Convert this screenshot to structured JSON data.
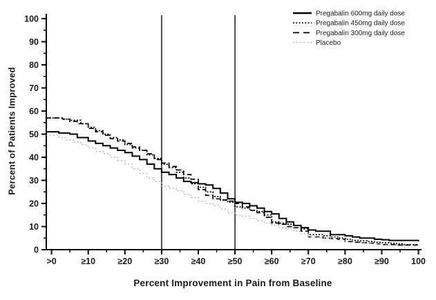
{
  "figure": {
    "background": "#ffffff",
    "xlabel": "Percent Improvement in Pain from Baseline",
    "ylabel": "Percent of Patients Improved"
  },
  "chart_data": {
    "type": "line",
    "variant": "step-after-responder-curves",
    "title": "",
    "xlabel": "Percent Improvement in Pain from Baseline",
    "ylabel": "Percent of Patients Improved",
    "xlim": [
      0,
      100
    ],
    "ylim": [
      0,
      100
    ],
    "grid": false,
    "legend_position": "top-right",
    "x_tick_values": [
      0,
      10,
      20,
      30,
      40,
      50,
      60,
      70,
      80,
      90,
      100
    ],
    "x_tick_labels": [
      ">0",
      "≥10",
      "≥20",
      "≥30",
      "≥40",
      "≥50",
      "≥60",
      "≥70",
      "≥80",
      "≥90",
      "100"
    ],
    "x_minor_tick_values": [
      5,
      15,
      25,
      35,
      45,
      55,
      65,
      75,
      85,
      95
    ],
    "y_tick_values": [
      0,
      10,
      20,
      30,
      40,
      50,
      60,
      70,
      80,
      90,
      100
    ],
    "y_tick_labels": [
      "0",
      "10",
      "20",
      "30",
      "40",
      "50",
      "60",
      "70",
      "80",
      "90",
      "100"
    ],
    "y_minor_tick_values": [
      5,
      15,
      25,
      35,
      45,
      55,
      65,
      75,
      85,
      95
    ],
    "reference_lines_x": [
      30,
      50
    ],
    "colors": {
      "pregabalin_lines": "#000000",
      "placebo_line": "#b3b3b3",
      "reference_line": "#4d4d4d",
      "axis": "#000000",
      "text": "#1a1a1a"
    },
    "series": [
      {
        "name": "Pregabalin 600mg daily dose",
        "style": "solid",
        "color": "#000000",
        "points": [
          [
            0,
            51
          ],
          [
            2,
            50.5
          ],
          [
            5,
            50
          ],
          [
            7,
            48.5
          ],
          [
            10,
            47
          ],
          [
            12,
            46
          ],
          [
            14,
            45
          ],
          [
            16,
            44
          ],
          [
            18,
            43
          ],
          [
            20,
            42
          ],
          [
            22,
            40.5
          ],
          [
            24,
            39
          ],
          [
            26,
            37
          ],
          [
            28,
            35
          ],
          [
            30,
            33.5
          ],
          [
            32,
            32.5
          ],
          [
            34,
            31
          ],
          [
            36,
            29.5
          ],
          [
            38,
            29
          ],
          [
            40,
            28.5
          ],
          [
            42,
            28
          ],
          [
            44,
            26.5
          ],
          [
            46,
            24.5
          ],
          [
            48,
            22
          ],
          [
            50,
            20.5
          ],
          [
            52,
            20
          ],
          [
            54,
            19
          ],
          [
            56,
            18
          ],
          [
            58,
            16.5
          ],
          [
            60,
            15.5
          ],
          [
            62,
            13.5
          ],
          [
            64,
            12
          ],
          [
            66,
            10.5
          ],
          [
            68,
            9.5
          ],
          [
            70,
            8.5
          ],
          [
            72,
            8
          ],
          [
            74,
            8
          ],
          [
            76,
            6.5
          ],
          [
            78,
            6.5
          ],
          [
            80,
            6
          ],
          [
            82,
            5.5
          ],
          [
            84,
            5
          ],
          [
            86,
            5
          ],
          [
            88,
            4.5
          ],
          [
            90,
            4.3
          ],
          [
            92,
            4
          ],
          [
            96,
            4
          ],
          [
            100,
            3.6
          ]
        ]
      },
      {
        "name": "Pregabalin 450mg daily dose",
        "style": "dotted",
        "color": "#000000",
        "points": [
          [
            0,
            57
          ],
          [
            3,
            56.5
          ],
          [
            5,
            56
          ],
          [
            8,
            54.5
          ],
          [
            10,
            53
          ],
          [
            12,
            51.5
          ],
          [
            14,
            50
          ],
          [
            16,
            48.5
          ],
          [
            18,
            47.5
          ],
          [
            20,
            45.5
          ],
          [
            22,
            44
          ],
          [
            24,
            43
          ],
          [
            26,
            41
          ],
          [
            28,
            39.5
          ],
          [
            30,
            37
          ],
          [
            32,
            35.5
          ],
          [
            34,
            33.5
          ],
          [
            36,
            31
          ],
          [
            38,
            28.5
          ],
          [
            40,
            27
          ],
          [
            42,
            25
          ],
          [
            44,
            23
          ],
          [
            46,
            21.5
          ],
          [
            48,
            20.5
          ],
          [
            50,
            18.5
          ],
          [
            52,
            18
          ],
          [
            54,
            17
          ],
          [
            56,
            16.5
          ],
          [
            58,
            15
          ],
          [
            60,
            12
          ],
          [
            62,
            11.5
          ],
          [
            64,
            11
          ],
          [
            66,
            10.5
          ],
          [
            68,
            9
          ],
          [
            70,
            6.5
          ],
          [
            72,
            6.5
          ],
          [
            74,
            6
          ],
          [
            76,
            5.5
          ],
          [
            78,
            5
          ],
          [
            80,
            4.5
          ],
          [
            82,
            4
          ],
          [
            84,
            3.8
          ],
          [
            86,
            3.5
          ],
          [
            88,
            3.2
          ],
          [
            90,
            3
          ],
          [
            92,
            2.8
          ],
          [
            94,
            2.5
          ],
          [
            96,
            2.2
          ],
          [
            100,
            2
          ]
        ]
      },
      {
        "name": "Pregabalin 300mg daily dose",
        "style": "dashed",
        "color": "#000000",
        "points": [
          [
            0,
            57
          ],
          [
            3,
            56.5
          ],
          [
            5,
            55.5
          ],
          [
            7,
            54.5
          ],
          [
            10,
            52.5
          ],
          [
            12,
            51
          ],
          [
            14,
            49.5
          ],
          [
            16,
            48
          ],
          [
            18,
            47
          ],
          [
            20,
            46
          ],
          [
            22,
            44.5
          ],
          [
            24,
            43
          ],
          [
            26,
            41.5
          ],
          [
            28,
            39
          ],
          [
            30,
            37.5
          ],
          [
            32,
            36
          ],
          [
            34,
            34.5
          ],
          [
            36,
            32.5
          ],
          [
            38,
            30.5
          ],
          [
            40,
            26
          ],
          [
            42,
            23.5
          ],
          [
            44,
            22
          ],
          [
            46,
            21.5
          ],
          [
            48,
            21
          ],
          [
            50,
            20
          ],
          [
            52,
            18.5
          ],
          [
            54,
            17
          ],
          [
            56,
            16
          ],
          [
            58,
            14
          ],
          [
            60,
            11.5
          ],
          [
            62,
            11
          ],
          [
            64,
            10
          ],
          [
            66,
            9.5
          ],
          [
            68,
            8
          ],
          [
            70,
            5.5
          ],
          [
            72,
            5.5
          ],
          [
            74,
            5
          ],
          [
            76,
            4.8
          ],
          [
            78,
            4.5
          ],
          [
            80,
            3.5
          ],
          [
            82,
            3.2
          ],
          [
            84,
            3
          ],
          [
            86,
            2.8
          ],
          [
            88,
            2.5
          ],
          [
            90,
            2.2
          ],
          [
            94,
            2
          ],
          [
            100,
            1.8
          ]
        ]
      },
      {
        "name": "Placebo",
        "style": "dotted",
        "color": "#b3b3b3",
        "points": [
          [
            0,
            49.5
          ],
          [
            2,
            48.5
          ],
          [
            4,
            47.5
          ],
          [
            6,
            46.5
          ],
          [
            8,
            45.5
          ],
          [
            10,
            44
          ],
          [
            12,
            42.5
          ],
          [
            14,
            41.5
          ],
          [
            16,
            40
          ],
          [
            18,
            38.5
          ],
          [
            20,
            37
          ],
          [
            22,
            35
          ],
          [
            24,
            33
          ],
          [
            26,
            31
          ],
          [
            28,
            29.5
          ],
          [
            30,
            27.5
          ],
          [
            32,
            26.5
          ],
          [
            34,
            25.5
          ],
          [
            36,
            24
          ],
          [
            38,
            22.5
          ],
          [
            40,
            21
          ],
          [
            42,
            20
          ],
          [
            44,
            19
          ],
          [
            46,
            17.5
          ],
          [
            48,
            16
          ],
          [
            50,
            15
          ],
          [
            52,
            14.5
          ],
          [
            54,
            13.5
          ],
          [
            56,
            12.5
          ],
          [
            58,
            11.5
          ],
          [
            60,
            10.5
          ],
          [
            62,
            9.5
          ],
          [
            64,
            9
          ],
          [
            66,
            8
          ],
          [
            68,
            7
          ],
          [
            70,
            5.5
          ],
          [
            72,
            5.3
          ],
          [
            74,
            5
          ],
          [
            76,
            4.5
          ],
          [
            78,
            4.2
          ],
          [
            80,
            3.8
          ],
          [
            82,
            3.5
          ],
          [
            84,
            3
          ],
          [
            86,
            2.8
          ],
          [
            88,
            2.5
          ],
          [
            90,
            2
          ],
          [
            92,
            1.8
          ],
          [
            94,
            1.5
          ],
          [
            96,
            1.2
          ],
          [
            100,
            1
          ]
        ]
      }
    ]
  }
}
